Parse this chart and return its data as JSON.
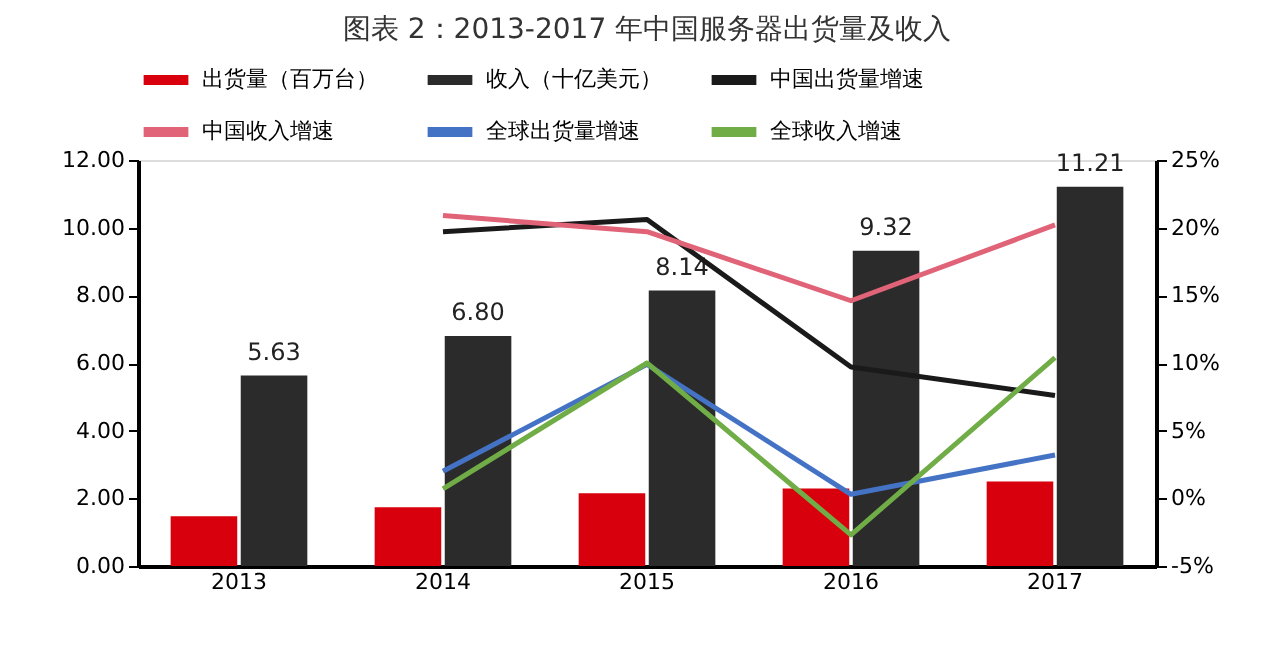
{
  "chart_data": {
    "type": "bar",
    "title": "图表 2：2013-2017 年中国服务器出货量及收入",
    "categories": [
      "2013",
      "2014",
      "2015",
      "2016",
      "2017"
    ],
    "series": [
      {
        "name": "出货量（百万台）",
        "color": "#d9000d",
        "values": [
          1.47,
          1.74,
          2.15,
          2.29,
          2.5
        ]
      },
      {
        "name": "收入（十亿美元）",
        "color": "#2b2b2b",
        "values": [
          5.63,
          6.8,
          8.14,
          9.32,
          11.21
        ],
        "value_labels": [
          "5.63",
          "6.80",
          "8.14",
          "9.32",
          "11.21"
        ]
      },
      {
        "name": "中国出货量增速",
        "type": "line",
        "axis": "y2",
        "color": "#1a1a1a",
        "values": [
          null,
          19.7,
          20.6,
          9.7,
          7.6
        ]
      },
      {
        "name": "中国收入增速",
        "type": "line",
        "axis": "y2",
        "color": "#e06377",
        "values": [
          null,
          20.9,
          19.7,
          14.6,
          20.2
        ]
      },
      {
        "name": "全球出货量增速",
        "type": "line",
        "axis": "y2",
        "color": "#4472c4",
        "values": [
          null,
          2.0,
          9.9,
          0.3,
          3.2
        ]
      },
      {
        "name": "全球收入增速",
        "type": "line",
        "axis": "y2",
        "color": "#70ad47",
        "values": [
          null,
          0.7,
          10.0,
          -2.7,
          10.4
        ]
      }
    ],
    "ylim": [
      0,
      12
    ],
    "yticks": [
      {
        "value": 0,
        "label": "0.00"
      },
      {
        "value": 2,
        "label": "2.00"
      },
      {
        "value": 4,
        "label": "4.00"
      },
      {
        "value": 6,
        "label": "6.00"
      },
      {
        "value": 8,
        "label": "8.00"
      },
      {
        "value": 10,
        "label": "10.00"
      },
      {
        "value": 12,
        "label": "12.00"
      }
    ],
    "y2lim": [
      -5,
      25
    ],
    "y2ticks": [
      {
        "value": -5,
        "label": "-5%"
      },
      {
        "value": 0,
        "label": "0%"
      },
      {
        "value": 5,
        "label": "5%"
      },
      {
        "value": 10,
        "label": "10%"
      },
      {
        "value": 15,
        "label": "15%"
      },
      {
        "value": 20,
        "label": "20%"
      },
      {
        "value": 25,
        "label": "25%"
      }
    ],
    "legend": "top",
    "grid": false
  }
}
